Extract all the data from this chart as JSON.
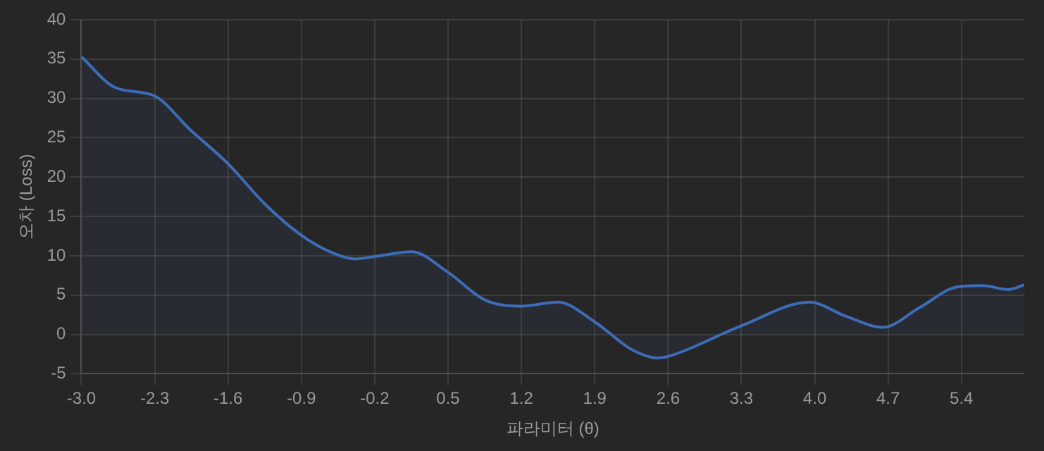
{
  "chart_data": {
    "type": "area",
    "xlabel": "파라미터 (θ)",
    "ylabel": "오차 (Loss)",
    "x": [
      -3.0,
      -2.68,
      -2.3,
      -1.96,
      -1.6,
      -1.25,
      -0.9,
      -0.61,
      -0.39,
      -0.2,
      0.15,
      0.5,
      0.85,
      1.2,
      1.55,
      1.9,
      2.25,
      2.5,
      2.6,
      3.3,
      3.95,
      4.3,
      4.65,
      5.0,
      5.35,
      5.6,
      5.85,
      6.0
    ],
    "series": [
      {
        "color": "#3d6cb8",
        "values": [
          35.3,
          31.4,
          30.3,
          26.0,
          21.7,
          16.6,
          12.6,
          10.4,
          9.6,
          9.9,
          10.5,
          7.9,
          4.4,
          3.6,
          4.1,
          1.6,
          -1.9,
          -3.0,
          -2.8,
          1.1,
          4.1,
          2.3,
          0.9,
          3.4,
          6.0,
          6.2,
          5.7,
          6.3
        ]
      }
    ],
    "xlim": [
      -3.0,
      6.0
    ],
    "xticks": [
      {
        "value": -3.0,
        "label": "-3.0"
      },
      -2.3,
      -1.6,
      -0.9,
      -0.2,
      0.5,
      1.2,
      1.9,
      2.6,
      3.3,
      {
        "value": 4.0,
        "label": "4.0"
      },
      4.7,
      5.4
    ],
    "ylim": [
      -5,
      40
    ],
    "yticks": [
      -5,
      0,
      5,
      10,
      15,
      20,
      25,
      30,
      35,
      40
    ],
    "grid": true,
    "legend": false,
    "marker": "none",
    "line_style": "solid"
  }
}
